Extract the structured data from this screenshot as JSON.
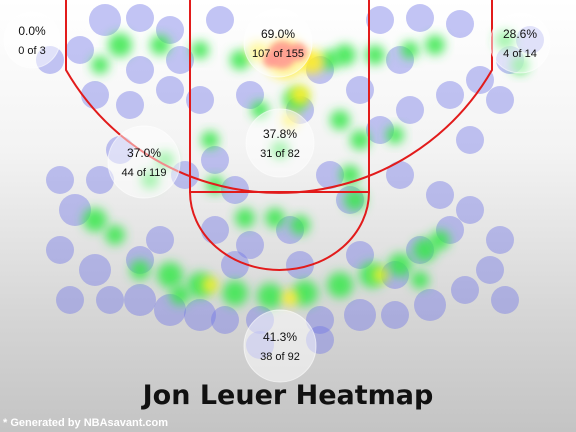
{
  "chart_data": {
    "type": "heatmap",
    "title": "Jon Leuer Heatmap",
    "zones": [
      {
        "name": "left-corner-3",
        "pct": "0.0%",
        "made": 0,
        "attempts": 3
      },
      {
        "name": "restricted-area",
        "pct": "69.0%",
        "made": 107,
        "attempts": 155
      },
      {
        "name": "right-corner-3",
        "pct": "28.6%",
        "made": 4,
        "attempts": 14
      },
      {
        "name": "mid-range-left",
        "pct": "37.0%",
        "made": 44,
        "attempts": 119
      },
      {
        "name": "paint-non-ra",
        "pct": "37.8%",
        "made": 31,
        "attempts": 82
      },
      {
        "name": "above-break-3",
        "pct": "41.3%",
        "made": 38,
        "attempts": 92
      }
    ]
  },
  "credit": "* Generated by NBAsavant.com",
  "colors": {
    "court_lines": "#e21b1b",
    "heat_low": "#6f74e6",
    "heat_mid": "#37e84a",
    "heat_high": "#ffee22",
    "heat_hot": "#ff3324"
  }
}
